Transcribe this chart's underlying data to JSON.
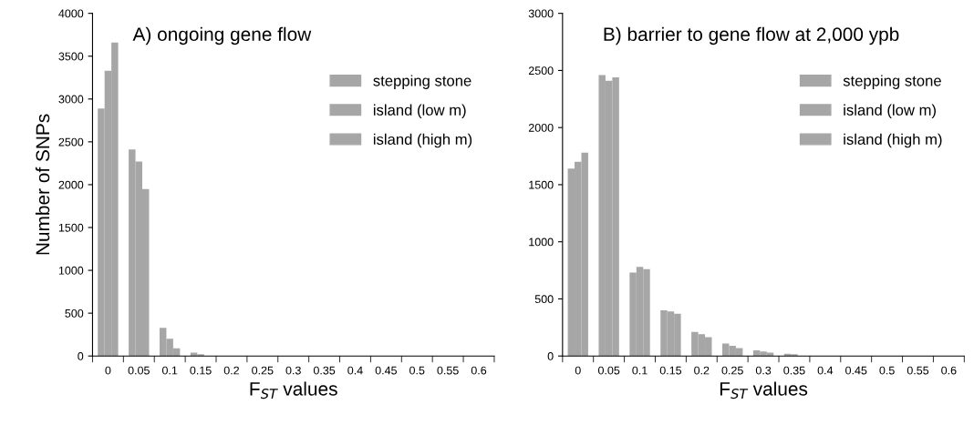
{
  "chart_data": [
    {
      "type": "bar",
      "title": "A) ongoing gene flow",
      "xlabel": "F$_{ST}$ values",
      "ylabel": "Number of SNPs",
      "categories": [
        "0",
        "0.05",
        "0.1",
        "0.15",
        "0.2",
        "0.25",
        "0.3",
        "0.35",
        "0.4",
        "0.45",
        "0.5",
        "0.55",
        "0.6"
      ],
      "series": [
        {
          "name": "stepping stone",
          "color": "#a6a6a6",
          "values": [
            2890,
            2410,
            330,
            40,
            0,
            0,
            0,
            0,
            0,
            0,
            0,
            0,
            0
          ]
        },
        {
          "name": "island (low m)",
          "color": "#a6a6a6",
          "values": [
            3330,
            2270,
            200,
            20,
            0,
            0,
            0,
            0,
            0,
            0,
            0,
            0,
            0
          ]
        },
        {
          "name": "island (high m)",
          "color": "#a6a6a6",
          "values": [
            3660,
            1950,
            90,
            0,
            0,
            0,
            0,
            0,
            0,
            0,
            0,
            0,
            0
          ]
        }
      ],
      "ylim": [
        0,
        4000
      ],
      "yticks": [
        0,
        500,
        1000,
        1500,
        2000,
        2500,
        3000,
        3500,
        4000
      ],
      "grid": false,
      "legend": "top right"
    },
    {
      "type": "bar",
      "title": "B) barrier to gene flow at 2,000 ypb",
      "xlabel": "F$_{ST}$ values",
      "categories": [
        "0",
        "0.05",
        "0.1",
        "0.15",
        "0.2",
        "0.25",
        "0.3",
        "0.35",
        "0.4",
        "0.45",
        "0.5",
        "0.55",
        "0.6"
      ],
      "series": [
        {
          "name": "stepping stone",
          "color": "#a6a6a6",
          "values": [
            1640,
            2460,
            730,
            400,
            210,
            110,
            50,
            20,
            0,
            0,
            0,
            0,
            0
          ]
        },
        {
          "name": "island (low m)",
          "color": "#a6a6a6",
          "values": [
            1700,
            2410,
            780,
            390,
            190,
            90,
            40,
            15,
            0,
            0,
            0,
            0,
            0
          ]
        },
        {
          "name": "island (high m)",
          "color": "#a6a6a6",
          "values": [
            1780,
            2440,
            760,
            370,
            165,
            70,
            30,
            0,
            0,
            0,
            0,
            0,
            0
          ]
        }
      ],
      "ylim": [
        0,
        3000
      ],
      "yticks": [
        0,
        500,
        1000,
        1500,
        2000,
        2500,
        3000
      ],
      "grid": false,
      "legend": "top right"
    }
  ]
}
